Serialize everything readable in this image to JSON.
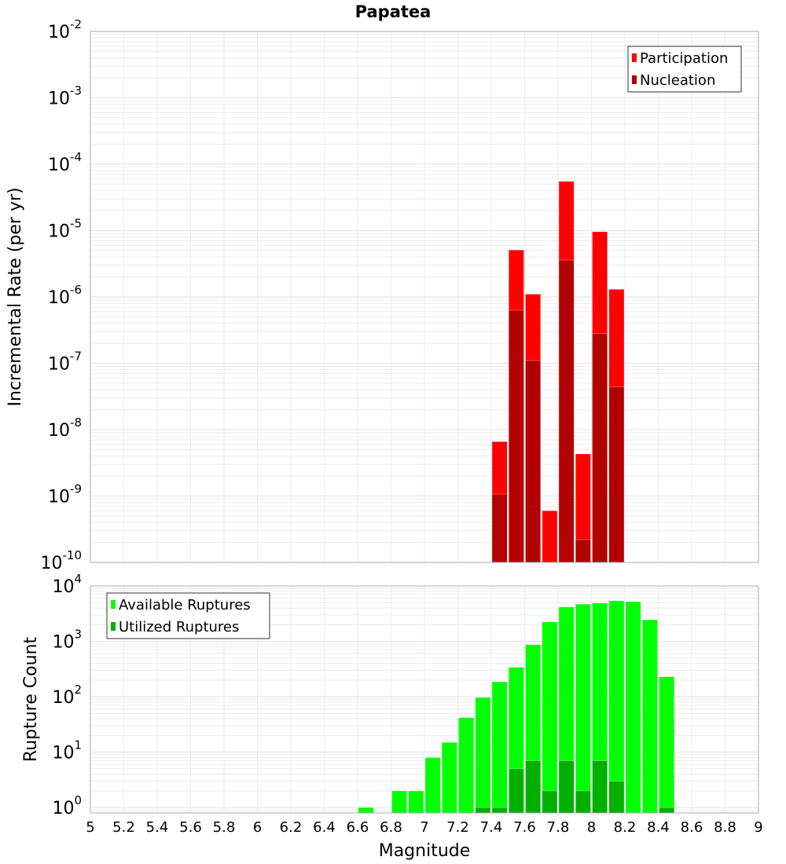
{
  "chart_data": [
    {
      "type": "bar",
      "title": "Papatea",
      "xlabel": "Magnitude",
      "ylabel": "Incremental Rate (per yr)",
      "yscale": "log",
      "ylim": [
        1e-10,
        0.01
      ],
      "xlim": [
        5,
        9
      ],
      "bin_width": 0.1,
      "grid": true,
      "legend_position": "top-right",
      "y_ticks": [
        {
          "base": "10",
          "exp": "-10"
        },
        {
          "base": "10",
          "exp": "-9"
        },
        {
          "base": "10",
          "exp": "-8"
        },
        {
          "base": "10",
          "exp": "-7"
        },
        {
          "base": "10",
          "exp": "-6"
        },
        {
          "base": "10",
          "exp": "-5"
        },
        {
          "base": "10",
          "exp": "-4"
        },
        {
          "base": "10",
          "exp": "-3"
        },
        {
          "base": "10",
          "exp": "-2"
        }
      ],
      "x": [
        7.45,
        7.55,
        7.65,
        7.75,
        7.85,
        7.95,
        8.05,
        8.15
      ],
      "series": [
        {
          "name": "Participation",
          "color": "#ff0000",
          "values": [
            6.6e-09,
            5.1e-06,
            1.1e-06,
            6e-10,
            5.5e-05,
            4.3e-09,
            9.6e-06,
            1.3e-06
          ]
        },
        {
          "name": "Nucleation",
          "color": "#b30000",
          "values": [
            1.07e-09,
            6.3e-07,
            1.1e-07,
            0,
            3.6e-06,
            2.2e-10,
            2.8e-07,
            4.4e-08
          ]
        }
      ]
    },
    {
      "type": "bar",
      "xlabel": "Magnitude",
      "ylabel": "Rupture Count",
      "yscale": "log",
      "ylim": [
        0.8,
        10000
      ],
      "xlim": [
        5,
        9
      ],
      "bin_width": 0.1,
      "grid": true,
      "legend_position": "top-left",
      "y_ticks": [
        {
          "base": "10",
          "exp": "0",
          "v": 1
        },
        {
          "base": "10",
          "exp": "1",
          "v": 10
        },
        {
          "base": "10",
          "exp": "2",
          "v": 100
        },
        {
          "base": "10",
          "exp": "3",
          "v": 1000
        },
        {
          "base": "10",
          "exp": "4",
          "v": 10000
        }
      ],
      "x_ticks": [
        "5",
        "5.2",
        "5.4",
        "5.6",
        "5.8",
        "6",
        "6.2",
        "6.4",
        "6.6",
        "6.8",
        "7",
        "7.2",
        "7.4",
        "7.6",
        "7.8",
        "8",
        "8.2",
        "8.4",
        "8.6",
        "8.8",
        "9"
      ],
      "x": [
        6.65,
        6.75,
        6.85,
        6.95,
        7.05,
        7.15,
        7.25,
        7.35,
        7.45,
        7.55,
        7.65,
        7.75,
        7.85,
        7.95,
        8.05,
        8.15,
        8.25,
        8.35,
        8.45
      ],
      "series": [
        {
          "name": "Available Ruptures",
          "color": "#00ff00",
          "values": [
            1,
            0,
            2,
            2,
            8,
            15,
            42,
            97,
            186,
            340,
            870,
            2240,
            4170,
            4700,
            4900,
            5400,
            5200,
            2450,
            230
          ]
        },
        {
          "name": "Utilized Ruptures",
          "color": "#00b000",
          "values": [
            0,
            0,
            0,
            0,
            0,
            0,
            0,
            1,
            1,
            5,
            7,
            2,
            7,
            2,
            7,
            3,
            0,
            0,
            1
          ]
        }
      ]
    }
  ]
}
